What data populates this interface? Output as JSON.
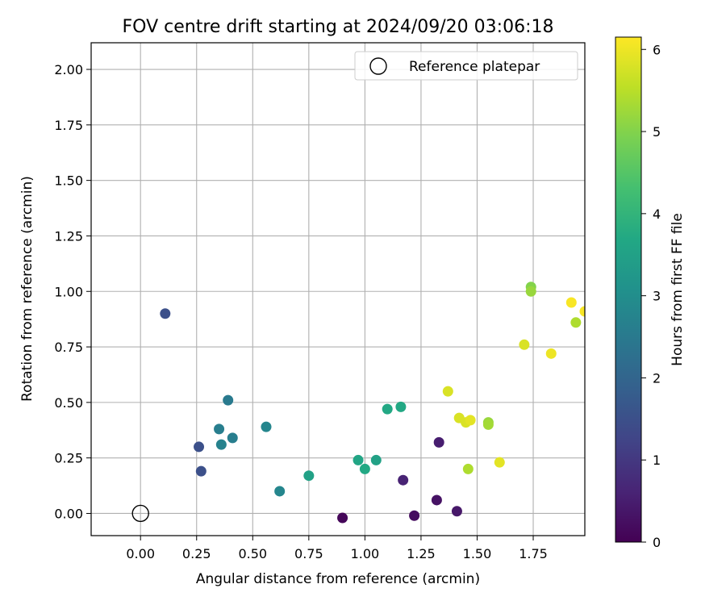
{
  "chart_data": {
    "type": "scatter",
    "title": "FOV centre drift starting at 2024/09/20 03:06:18",
    "xlabel": "Angular distance from reference (arcmin)",
    "ylabel": "Rotation from reference (arcmin)",
    "xlim": [
      -0.22,
      1.98
    ],
    "ylim": [
      -0.1,
      2.12
    ],
    "xticks": [
      "0.00",
      "0.25",
      "0.50",
      "0.75",
      "1.00",
      "1.25",
      "1.50",
      "1.75"
    ],
    "yticks": [
      "0.00",
      "0.25",
      "0.50",
      "0.75",
      "1.00",
      "1.25",
      "1.50",
      "1.75",
      "2.00"
    ],
    "grid": true,
    "legend": {
      "label": "Reference platepar",
      "placement": "top-right",
      "marker": "hollow-circle"
    },
    "reference_point": {
      "x": 0.0,
      "y": 0.0
    },
    "colorbar": {
      "label": "Hours from first FF file",
      "colormap": "viridis",
      "range": [
        0,
        6.15
      ],
      "ticks": [
        "0",
        "1",
        "2",
        "3",
        "4",
        "5",
        "6"
      ]
    },
    "points": [
      {
        "x": 0.9,
        "y": -0.02,
        "hours": 0.1
      },
      {
        "x": 1.22,
        "y": -0.01,
        "hours": 0.2
      },
      {
        "x": 1.32,
        "y": 0.06,
        "hours": 0.3
      },
      {
        "x": 1.41,
        "y": 0.01,
        "hours": 0.4
      },
      {
        "x": 1.33,
        "y": 0.32,
        "hours": 0.5
      },
      {
        "x": 1.17,
        "y": 0.15,
        "hours": 0.6
      },
      {
        "x": 0.11,
        "y": 0.9,
        "hours": 1.5
      },
      {
        "x": 0.26,
        "y": 0.3,
        "hours": 1.5
      },
      {
        "x": 0.27,
        "y": 0.19,
        "hours": 1.5
      },
      {
        "x": 0.39,
        "y": 0.51,
        "hours": 2.5
      },
      {
        "x": 0.35,
        "y": 0.38,
        "hours": 2.6
      },
      {
        "x": 0.36,
        "y": 0.31,
        "hours": 2.7
      },
      {
        "x": 0.41,
        "y": 0.34,
        "hours": 2.6
      },
      {
        "x": 0.56,
        "y": 0.39,
        "hours": 2.8
      },
      {
        "x": 0.62,
        "y": 0.1,
        "hours": 2.8
      },
      {
        "x": 0.75,
        "y": 0.17,
        "hours": 3.5
      },
      {
        "x": 0.97,
        "y": 0.24,
        "hours": 3.6
      },
      {
        "x": 1.0,
        "y": 0.2,
        "hours": 3.7
      },
      {
        "x": 1.05,
        "y": 0.24,
        "hours": 3.5
      },
      {
        "x": 1.1,
        "y": 0.47,
        "hours": 3.7
      },
      {
        "x": 1.16,
        "y": 0.48,
        "hours": 3.7
      },
      {
        "x": 1.37,
        "y": 0.55,
        "hours": 5.8
      },
      {
        "x": 1.42,
        "y": 0.43,
        "hours": 5.8
      },
      {
        "x": 1.45,
        "y": 0.41,
        "hours": 5.8
      },
      {
        "x": 1.47,
        "y": 0.42,
        "hours": 5.9
      },
      {
        "x": 1.46,
        "y": 0.2,
        "hours": 5.4
      },
      {
        "x": 1.55,
        "y": 0.41,
        "hours": 5.2
      },
      {
        "x": 1.55,
        "y": 0.4,
        "hours": 5.3
      },
      {
        "x": 1.6,
        "y": 0.23,
        "hours": 5.9
      },
      {
        "x": 1.71,
        "y": 0.76,
        "hours": 5.8
      },
      {
        "x": 1.74,
        "y": 1.02,
        "hours": 5.0
      },
      {
        "x": 1.74,
        "y": 1.0,
        "hours": 5.2
      },
      {
        "x": 1.83,
        "y": 0.72,
        "hours": 6.0
      },
      {
        "x": 1.92,
        "y": 0.95,
        "hours": 6.1
      },
      {
        "x": 1.94,
        "y": 0.86,
        "hours": 5.4
      },
      {
        "x": 1.98,
        "y": 0.91,
        "hours": 6.1
      }
    ]
  }
}
